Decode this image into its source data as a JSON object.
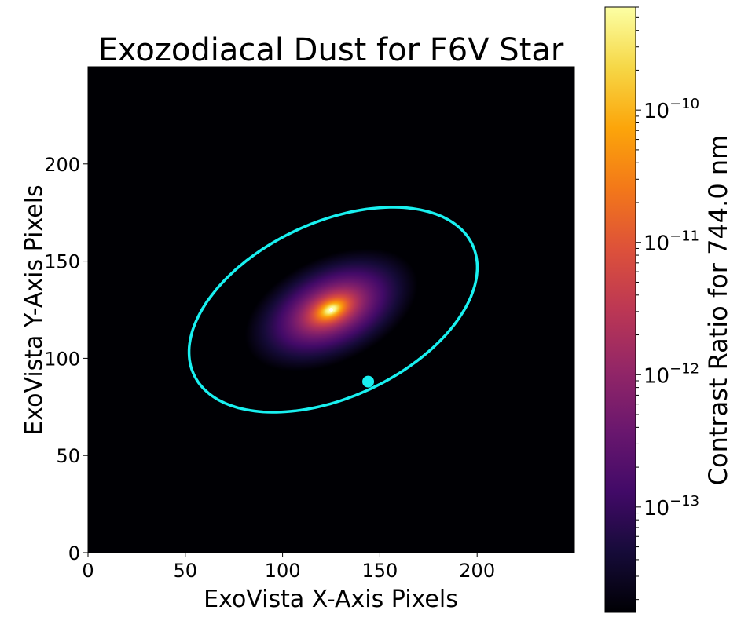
{
  "chart_data": {
    "type": "heatmap",
    "title": "Exozodiacal Dust for F6V Star",
    "xlabel": "ExoVista X-Axis Pixels",
    "ylabel": "ExoVista Y-Axis Pixels",
    "xlim": [
      0,
      250
    ],
    "ylim": [
      0,
      250
    ],
    "x_ticks": [
      "0",
      "50",
      "100",
      "150",
      "200"
    ],
    "y_ticks": [
      "0",
      "50",
      "100",
      "150",
      "200"
    ],
    "x_tick_values": [
      0,
      50,
      100,
      150,
      200
    ],
    "y_tick_values": [
      0,
      50,
      100,
      150,
      200
    ],
    "colormap": "inferno",
    "colorbar": {
      "label": "Contrast Ratio for 744.0 nm",
      "scale": "log",
      "range": [
        1.6e-14,
        6e-10
      ],
      "ticks": [
        {
          "value": 1e-13,
          "base": "10",
          "exp": "−13"
        },
        {
          "value": 1e-12,
          "base": "10",
          "exp": "−12"
        },
        {
          "value": 1e-11,
          "base": "10",
          "exp": "−11"
        },
        {
          "value": 1e-10,
          "base": "10",
          "exp": "−10"
        }
      ]
    },
    "star_center": {
      "x": 125,
      "y": 125
    },
    "orbit": {
      "center": {
        "x": 126,
        "y": 125
      },
      "semi_major": 79,
      "semi_minor": 45,
      "angle_deg": 25,
      "color": "#19f0f0"
    },
    "planet": {
      "x": 144,
      "y": 88,
      "color": "#19f0f0"
    }
  }
}
